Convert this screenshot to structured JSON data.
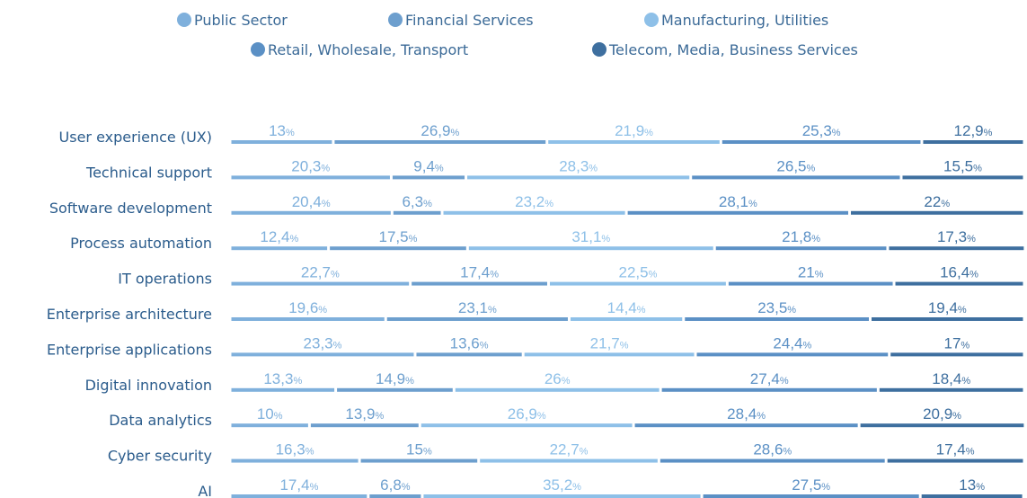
{
  "chart_data": {
    "type": "bar",
    "orientation": "horizontal",
    "stacked": true,
    "xlim": [
      0,
      100
    ],
    "legend": "top",
    "categories": [
      "User experience (UX)",
      "Technical support",
      "Software development",
      "Process automation",
      "IT operations",
      "Enterprise architecture",
      "Enterprise applications",
      "Digital innovation",
      "Data analytics",
      "Cyber security",
      "AI"
    ],
    "series": [
      {
        "name": "Public Sector",
        "color": "#7fb0dc",
        "values": [
          13,
          20.3,
          20.4,
          12.4,
          22.7,
          19.6,
          23.3,
          13.3,
          10,
          16.3,
          17.4
        ],
        "value_labels": [
          "13%",
          "20,3%",
          "20,4%",
          "12,4%",
          "22,7%",
          "19,6%",
          "23,3%",
          "13,3%",
          "10%",
          "16,3%",
          "17,4%"
        ]
      },
      {
        "name": "Financial Services",
        "color": "#6d9fce",
        "values": [
          26.9,
          9.4,
          6.3,
          17.5,
          17.4,
          23.1,
          13.6,
          14.9,
          13.9,
          15,
          6.8
        ],
        "value_labels": [
          "26,9%",
          "9,4%",
          "6,3%",
          "17,5%",
          "17,4%",
          "23,1%",
          "13,6%",
          "14,9%",
          "13,9%",
          "15%",
          "6,8%"
        ]
      },
      {
        "name": "Manufacturing, Utilities",
        "color": "#8ec0e8",
        "values": [
          21.9,
          28.3,
          23.2,
          31.1,
          22.5,
          14.4,
          21.7,
          26,
          26.9,
          22.7,
          35.2
        ],
        "value_labels": [
          "21,9%",
          "28,3%",
          "23,2%",
          "31,1%",
          "22,5%",
          "14,4%",
          "21,7%",
          "26%",
          "26,9%",
          "22,7%",
          "35,2%"
        ]
      },
      {
        "name": "Retail, Wholesale, Transport",
        "color": "#5b90c5",
        "values": [
          25.3,
          26.5,
          28.1,
          21.8,
          21,
          23.5,
          24.4,
          27.4,
          28.4,
          28.6,
          27.5
        ],
        "value_labels": [
          "25,3%",
          "26,5%",
          "28,1%",
          "21,8%",
          "21%",
          "23,5%",
          "24,4%",
          "27,4%",
          "28,4%",
          "28,6%",
          "27,5%"
        ]
      },
      {
        "name": "Telecom, Media, Business Services",
        "color": "#3e6f9f",
        "values": [
          12.9,
          15.5,
          22,
          17.3,
          16.4,
          19.4,
          17,
          18.4,
          20.9,
          17.4,
          13
        ],
        "value_labels": [
          "12,9%",
          "15,5%",
          "22%",
          "17,3%",
          "16,4%",
          "19,4%",
          "17%",
          "18,4%",
          "20,9%",
          "17,4%",
          "13%"
        ]
      }
    ]
  }
}
